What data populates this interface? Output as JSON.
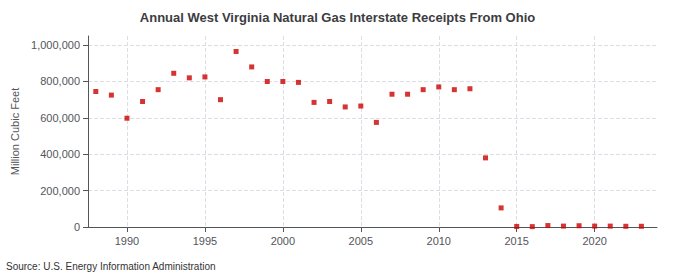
{
  "chart_data": {
    "type": "scatter",
    "title": "Annual West Virginia Natural Gas Interstate Receipts From Ohio",
    "ylabel": "Million Cubic Feet",
    "annotation": "Source: U.S. Energy Information Administration",
    "color": "#cc0000",
    "marker": "square",
    "grid": true,
    "x": [
      1988,
      1989,
      1990,
      1991,
      1992,
      1993,
      1994,
      1995,
      1996,
      1997,
      1998,
      1999,
      2000,
      2001,
      2002,
      2003,
      2004,
      2005,
      2006,
      2007,
      2008,
      2009,
      2010,
      2011,
      2012,
      2013,
      2014,
      2015,
      2016,
      2017,
      2018,
      2019,
      2020,
      2021,
      2022,
      2023
    ],
    "values": [
      745000,
      725000,
      598000,
      690000,
      755000,
      845000,
      820000,
      825000,
      700000,
      965000,
      880000,
      800000,
      800000,
      795000,
      685000,
      690000,
      660000,
      665000,
      575000,
      730000,
      730000,
      755000,
      770000,
      755000,
      760000,
      380000,
      105000,
      3000,
      2000,
      8000,
      5000,
      7000,
      5000,
      5000,
      4000,
      4000
    ],
    "xlim": [
      1987.5,
      2024
    ],
    "xticks": [
      1990,
      1995,
      2000,
      2005,
      2010,
      2015,
      2020
    ],
    "ylim": [
      0,
      1050000
    ],
    "yticks": [
      0,
      {
        "value": 200000,
        "label": "200,000"
      },
      {
        "value": 400000,
        "label": "400,000"
      },
      {
        "value": 600000,
        "label": "600,000"
      },
      {
        "value": 800000,
        "label": "800,000"
      },
      {
        "value": 1000000,
        "label": "1,000,000"
      }
    ]
  }
}
